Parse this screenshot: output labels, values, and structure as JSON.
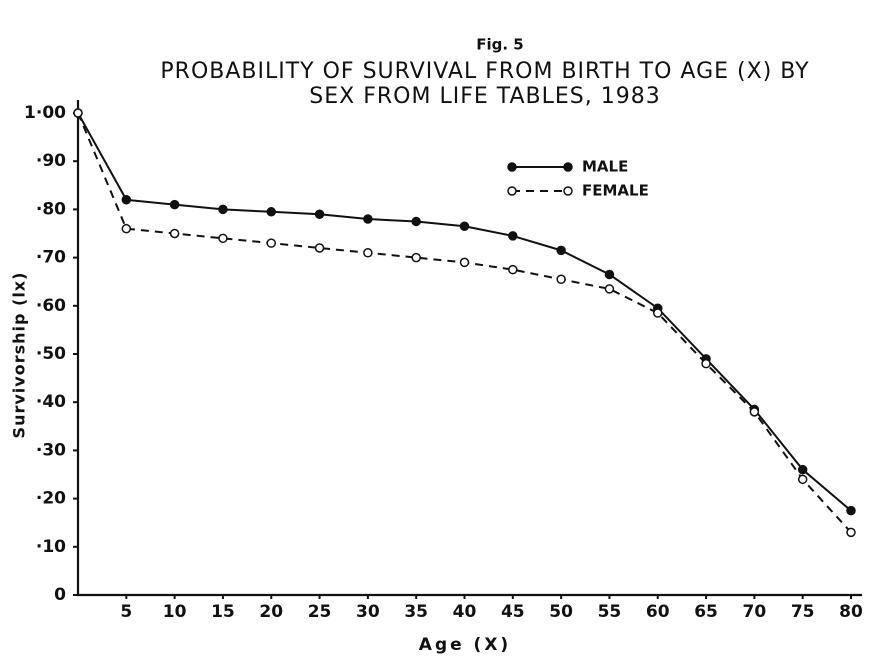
{
  "chart_data": {
    "type": "line",
    "figure_label": "Fig. 5",
    "title": [
      "PROBABILITY OF SURVIVAL FROM BIRTH TO AGE (X) BY",
      "SEX FROM LIFE TABLES, 1983"
    ],
    "x_label": "Age (X)",
    "y_label": "Survivorship (lx)",
    "x": [
      0,
      5,
      10,
      15,
      20,
      25,
      30,
      35,
      40,
      45,
      50,
      55,
      60,
      65,
      70,
      75,
      80
    ],
    "series": [
      {
        "name": "MALE",
        "color": "#111111",
        "line_style": "solid",
        "marker": "filled",
        "values": [
          1.0,
          0.82,
          0.81,
          0.8,
          0.795,
          0.79,
          0.78,
          0.775,
          0.765,
          0.745,
          0.715,
          0.665,
          0.595,
          0.49,
          0.385,
          0.26,
          0.175
        ]
      },
      {
        "name": "FEMALE",
        "color": "#111111",
        "line_style": "dashed",
        "marker": "open",
        "values": [
          1.0,
          0.76,
          0.75,
          0.74,
          0.73,
          0.72,
          0.71,
          0.7,
          0.69,
          0.675,
          0.655,
          0.635,
          0.585,
          0.48,
          0.38,
          0.24,
          0.13
        ]
      }
    ],
    "xlim": [
      0,
      80
    ],
    "xticks": [
      5,
      10,
      15,
      20,
      25,
      30,
      35,
      40,
      45,
      50,
      55,
      60,
      65,
      70,
      75,
      80
    ],
    "ylim": [
      0,
      1
    ],
    "yticks": [
      0,
      {
        "value": 0.1,
        "label": "·10"
      },
      {
        "value": 0.2,
        "label": "·20"
      },
      {
        "value": 0.3,
        "label": "·30"
      },
      {
        "value": 0.4,
        "label": "·40"
      },
      {
        "value": 0.5,
        "label": "·50"
      },
      {
        "value": 0.6,
        "label": "·60"
      },
      {
        "value": 0.7,
        "label": "·70"
      },
      {
        "value": 0.8,
        "label": "·80"
      },
      {
        "value": 0.9,
        "label": "·90"
      },
      {
        "value": 1.0,
        "label": "1·00"
      }
    ],
    "grid": false,
    "legend": "upper right"
  }
}
